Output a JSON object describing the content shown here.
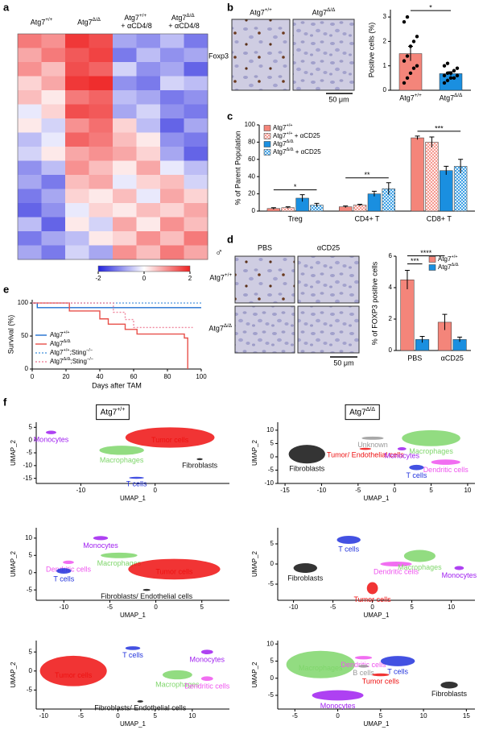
{
  "panel_labels": [
    "a",
    "b",
    "c",
    "d",
    "e",
    "f"
  ],
  "micrographs": {
    "b": {
      "col_labels": [
        "Atg7+/+",
        "Atg7Δ/Δ"
      ],
      "row_label": "Foxp3",
      "scale_bar": "50 μm"
    },
    "d": {
      "sex": "♂",
      "col_labels": [
        "PBS",
        "αCD25"
      ],
      "row_labels": [
        "Atg7+/+",
        "Atg7Δ/Δ"
      ],
      "scale_bar": "50 μm"
    }
  },
  "umap_titles": [
    "Atg7+/+",
    "Atg7Δ/Δ"
  ],
  "chart_data": [
    {
      "type": "heatmap",
      "column_groups": [
        "Atg7+/+",
        "Atg7Δ/Δ",
        "Atg7+/+ + αCD4/8",
        "Atg7Δ/Δ + αCD4/8"
      ],
      "values": [
        [
          1.2,
          1.0,
          1.8,
          1.6,
          -0.8,
          -1.0,
          -0.6,
          -1.2
        ],
        [
          0.8,
          1.2,
          1.5,
          1.7,
          -1.2,
          -0.6,
          -1.0,
          -0.8
        ],
        [
          1.0,
          0.6,
          1.6,
          1.4,
          -0.4,
          -1.0,
          -0.8,
          -1.4
        ],
        [
          0.4,
          0.8,
          1.8,
          1.9,
          -1.0,
          -1.2,
          -0.4,
          -0.6
        ],
        [
          0.6,
          0.2,
          1.2,
          1.4,
          -0.6,
          -0.8,
          -1.2,
          -1.0
        ],
        [
          -0.2,
          0.4,
          1.6,
          1.5,
          -0.8,
          -0.4,
          -1.0,
          -1.2
        ],
        [
          0.2,
          -0.4,
          1.0,
          1.3,
          0.4,
          -0.6,
          -1.4,
          -0.8
        ],
        [
          -0.6,
          -0.2,
          1.4,
          1.2,
          0.6,
          0.2,
          -1.0,
          -1.2
        ],
        [
          -0.4,
          0.2,
          0.8,
          1.0,
          0.8,
          0.4,
          -0.8,
          -1.4
        ],
        [
          -1.0,
          -0.6,
          1.0,
          0.6,
          0.2,
          0.8,
          -0.2,
          -0.6
        ],
        [
          -0.8,
          -1.2,
          0.6,
          0.8,
          -0.2,
          0.4,
          0.6,
          -0.4
        ],
        [
          -1.2,
          -0.8,
          0.4,
          0.2,
          0.6,
          -0.2,
          0.8,
          0.4
        ],
        [
          -1.4,
          -1.0,
          -0.2,
          0.4,
          0.2,
          0.6,
          0.4,
          0.8
        ],
        [
          -0.6,
          -1.4,
          0.2,
          -0.4,
          0.8,
          0.2,
          1.0,
          0.6
        ],
        [
          -1.2,
          -0.8,
          -0.6,
          0.2,
          0.4,
          1.0,
          0.6,
          1.2
        ],
        [
          -0.8,
          -1.2,
          -0.4,
          -0.8,
          1.0,
          0.6,
          1.2,
          0.8
        ]
      ],
      "clim": [
        -2,
        2
      ],
      "colorbar_ticks": [
        -2,
        0,
        2
      ],
      "colors": [
        "#2222dd",
        "#ffffff",
        "#ee2222"
      ]
    },
    {
      "type": "bar",
      "ylabel": "Positive cells (%)",
      "categories": [
        "Atg7+/+",
        "Atg7Δ/Δ"
      ],
      "values": [
        1.5,
        0.68
      ],
      "errors": [
        0.3,
        0.08
      ],
      "colors": [
        "#f4857a",
        "#1a8fe0"
      ],
      "points": [
        [
          0.3,
          0.5,
          0.7,
          0.9,
          1.0,
          1.2,
          1.4,
          1.8,
          2.0,
          2.2,
          2.8,
          3.0
        ],
        [
          0.3,
          0.4,
          0.5,
          0.5,
          0.6,
          0.6,
          0.7,
          0.7,
          0.8,
          0.9,
          1.0,
          1.1
        ]
      ],
      "ylim": [
        0,
        3.3
      ],
      "yticks": [
        0,
        1,
        2,
        3
      ],
      "significance": [
        "*"
      ]
    },
    {
      "type": "bar",
      "ylabel": "% of Parent Population",
      "legend": "upper left",
      "categories": [
        "Treg",
        "CD4+ T",
        "CD8+ T"
      ],
      "series": [
        {
          "name": "Atg7+/+",
          "color": "#f4857a",
          "values": [
            3,
            5,
            85
          ],
          "errors": [
            1,
            1,
            2
          ]
        },
        {
          "name": "Atg7+/+ + αCD25",
          "color": "#f4857a",
          "hatch": true,
          "values": [
            4,
            7,
            80
          ],
          "errors": [
            1,
            1,
            6
          ]
        },
        {
          "name": "Atg7Δ/Δ",
          "color": "#1a8fe0",
          "values": [
            15,
            20,
            47
          ],
          "errors": [
            4,
            3,
            5
          ]
        },
        {
          "name": "Atg7Δ/Δ + αCD25",
          "color": "#1a8fe0",
          "hatch": true,
          "values": [
            7,
            26,
            52
          ],
          "errors": [
            2,
            7,
            8
          ]
        }
      ],
      "ylim": [
        0,
        100
      ],
      "yticks": [
        0,
        20,
        40,
        60,
        80,
        100
      ],
      "group_significance": [
        "*",
        "**",
        "***"
      ]
    },
    {
      "type": "bar",
      "ylabel": "% of FOXP3 positive cells",
      "legend": "upper right",
      "categories": [
        "PBS",
        "αCD25"
      ],
      "series": [
        {
          "name": "Atg7+/+",
          "color": "#f4857a",
          "values": [
            4.5,
            1.8
          ],
          "errors": [
            0.6,
            0.5
          ]
        },
        {
          "name": "Atg7Δ/Δ",
          "color": "#1a8fe0",
          "values": [
            0.7,
            0.7
          ],
          "errors": [
            0.2,
            0.15
          ]
        }
      ],
      "ylim": [
        0,
        6
      ],
      "yticks": [
        0,
        2,
        4,
        6
      ],
      "significance": [
        "***",
        "****"
      ]
    },
    {
      "type": "line",
      "step": true,
      "xlabel": "Days after TAM",
      "ylabel": "Survival (%)",
      "legend": "lower left",
      "xlim": [
        0,
        100
      ],
      "ylim": [
        0,
        105
      ],
      "xticks": [
        0,
        20,
        40,
        60,
        80,
        100
      ],
      "yticks": [
        0,
        50,
        100
      ],
      "series": [
        {
          "name": "Atg7+/+",
          "color": "#1f6fd0",
          "style": "solid",
          "x": [
            0,
            3,
            100
          ],
          "values": [
            100,
            93,
            93
          ]
        },
        {
          "name": "Atg7Δ/Δ",
          "color": "#e8504a",
          "style": "solid",
          "x": [
            0,
            22,
            40,
            45,
            55,
            62,
            90,
            92
          ],
          "values": [
            100,
            88,
            76,
            68,
            60,
            53,
            47,
            0
          ]
        },
        {
          "name": "Atg7+/+;Sting−/−",
          "color": "#5fa0e0",
          "style": "dotted",
          "x": [
            0,
            100
          ],
          "values": [
            100,
            100
          ]
        },
        {
          "name": "Atg7Δ/Δ;Sting−/−",
          "color": "#f08aa0",
          "style": "dotted",
          "x": [
            0,
            48,
            55,
            60,
            95
          ],
          "values": [
            100,
            86,
            75,
            63,
            63
          ]
        }
      ]
    },
    {
      "type": "scatter",
      "xlabel": "UMAP_1",
      "ylabel": "UMAP_2",
      "xlim": [
        -16,
        10
      ],
      "ylim": [
        -17,
        7
      ],
      "xticks": [
        -10,
        0
      ],
      "yticks": [
        5,
        0,
        -5,
        -10,
        -15
      ],
      "clusters": [
        {
          "name": "Monocytes",
          "color": "#a020f0",
          "x": -14,
          "y": 3,
          "sx": 0.7,
          "sy": 0.7
        },
        {
          "name": "Macrophages",
          "color": "#7fd66b",
          "x": -4.5,
          "y": -4,
          "sx": 3,
          "sy": 1.8
        },
        {
          "name": "Tumor cells",
          "color": "#ee1111",
          "x": 2,
          "y": 1,
          "sx": 6,
          "sy": 4
        },
        {
          "name": "Fibroblasts",
          "color": "#111111",
          "x": 6,
          "y": -7.5,
          "sx": 0.4,
          "sy": 0.4
        },
        {
          "name": "T cells",
          "color": "#2233dd",
          "x": -2.5,
          "y": -14.8,
          "sx": 1,
          "sy": 0.4
        }
      ]
    },
    {
      "type": "scatter",
      "xlabel": "UMAP_1",
      "ylabel": "UMAP_2",
      "xlim": [
        -16,
        11
      ],
      "ylim": [
        -10,
        13
      ],
      "xticks": [
        -15,
        -10,
        -5,
        0,
        5,
        10
      ],
      "yticks": [
        10,
        5,
        0,
        -5,
        -10
      ],
      "clusters": [
        {
          "name": "Fibroblasts",
          "color": "#111111",
          "x": -12,
          "y": 1,
          "sx": 2.5,
          "sy": 3.5
        },
        {
          "name": "Unknown",
          "color": "#999999",
          "x": -3,
          "y": 7,
          "sx": 1.5,
          "sy": 0.6
        },
        {
          "name": "Tumor/ Endothelial cells",
          "color": "#ee1111",
          "x": -4,
          "y": 3,
          "sx": 0.8,
          "sy": 0.4
        },
        {
          "name": "Macrophages",
          "color": "#7fd66b",
          "x": 5,
          "y": 7,
          "sx": 4,
          "sy": 3
        },
        {
          "name": "Monocytes",
          "color": "#a020f0",
          "x": 1,
          "y": 3,
          "sx": 0.6,
          "sy": 0.6
        },
        {
          "name": "Dendritic cells",
          "color": "#ee55ee",
          "x": 7,
          "y": -2,
          "sx": 2,
          "sy": 1
        },
        {
          "name": "T cells",
          "color": "#2233dd",
          "x": 3,
          "y": -4,
          "sx": 1,
          "sy": 1
        }
      ]
    },
    {
      "type": "scatter",
      "xlabel": "UMAP_1",
      "ylabel": "UMAP_2",
      "xlim": [
        -13,
        8
      ],
      "ylim": [
        -8,
        13
      ],
      "xticks": [
        -10,
        -5,
        0,
        5
      ],
      "yticks": [
        10,
        5,
        0,
        -5
      ],
      "clusters": [
        {
          "name": "Monocytes",
          "color": "#a020f0",
          "x": -6,
          "y": 10,
          "sx": 0.8,
          "sy": 0.6
        },
        {
          "name": "Macrophages",
          "color": "#7fd66b",
          "x": -4,
          "y": 5,
          "sx": 2,
          "sy": 0.8
        },
        {
          "name": "Dendritic cells",
          "color": "#ee55ee",
          "x": -9.5,
          "y": 3,
          "sx": 0.6,
          "sy": 0.5
        },
        {
          "name": "T cells",
          "color": "#2233dd",
          "x": -10,
          "y": 0.5,
          "sx": 0.8,
          "sy": 0.8
        },
        {
          "name": "Tumor cells",
          "color": "#ee1111",
          "x": 2,
          "y": 1,
          "sx": 5,
          "sy": 3
        },
        {
          "name": "Fibroblasts/ Endothelial cells",
          "color": "#111111",
          "x": -1,
          "y": -5,
          "sx": 0.4,
          "sy": 0.3
        }
      ]
    },
    {
      "type": "scatter",
      "xlabel": "UMAP_1",
      "ylabel": "UMAP_2",
      "xlim": [
        -12,
        13
      ],
      "ylim": [
        -9,
        9
      ],
      "xticks": [
        -10,
        -5,
        0,
        5,
        10
      ],
      "yticks": [
        5,
        0,
        -5
      ],
      "clusters": [
        {
          "name": "T cells",
          "color": "#2233dd",
          "x": -3,
          "y": 6,
          "sx": 1.5,
          "sy": 1
        },
        {
          "name": "Fibroblasts",
          "color": "#111111",
          "x": -8.5,
          "y": -1,
          "sx": 1.5,
          "sy": 1.2
        },
        {
          "name": "Dendritic cells",
          "color": "#ee55ee",
          "x": 3,
          "y": 0,
          "sx": 2,
          "sy": 0.6
        },
        {
          "name": "Macrophages",
          "color": "#7fd66b",
          "x": 6,
          "y": 2,
          "sx": 2,
          "sy": 1.5
        },
        {
          "name": "Monocytes",
          "color": "#a020f0",
          "x": 11,
          "y": -1,
          "sx": 0.6,
          "sy": 0.5
        },
        {
          "name": "Tumor cells",
          "color": "#ee1111",
          "x": 0,
          "y": -6,
          "sx": 0.7,
          "sy": 1.5
        }
      ]
    },
    {
      "type": "scatter",
      "xlabel": "UMAP_1",
      "ylabel": "UMAP_2",
      "xlim": [
        -11,
        15
      ],
      "ylim": [
        -10,
        8
      ],
      "xticks": [
        -10,
        -5,
        0,
        5,
        10
      ],
      "yticks": [
        5,
        0,
        -5
      ],
      "clusters": [
        {
          "name": "Tumor cells",
          "color": "#ee1111",
          "x": -6,
          "y": 0,
          "sx": 4.5,
          "sy": 4
        },
        {
          "name": "T cells",
          "color": "#2233dd",
          "x": 2,
          "y": 6,
          "sx": 1,
          "sy": 0.5
        },
        {
          "name": "Monocytes",
          "color": "#a020f0",
          "x": 12,
          "y": 5,
          "sx": 0.8,
          "sy": 0.6
        },
        {
          "name": "Macrophages",
          "color": "#7fd66b",
          "x": 8,
          "y": -1,
          "sx": 2,
          "sy": 1.2
        },
        {
          "name": "Dendritic cells",
          "color": "#ee55ee",
          "x": 12,
          "y": -2,
          "sx": 0.8,
          "sy": 0.6
        },
        {
          "name": "Fibroblasts/ Endothelial cells",
          "color": "#111111",
          "x": 3,
          "y": -8,
          "sx": 0.4,
          "sy": 0.3
        }
      ]
    },
    {
      "type": "scatter",
      "xlabel": "UMAP_1",
      "ylabel": "UMAP_2",
      "xlim": [
        -7,
        16
      ],
      "ylim": [
        -9,
        11
      ],
      "xticks": [
        -5,
        0,
        5,
        10,
        15
      ],
      "yticks": [
        10,
        5,
        0,
        -5
      ],
      "clusters": [
        {
          "name": "Macrophages",
          "color": "#7fd66b",
          "x": -2,
          "y": 4,
          "sx": 4,
          "sy": 4
        },
        {
          "name": "Dendritic cells",
          "color": "#ee55ee",
          "x": 3,
          "y": 6,
          "sx": 1,
          "sy": 0.5
        },
        {
          "name": "B cells",
          "color": "#999999",
          "x": 3,
          "y": 3.5,
          "sx": 0.6,
          "sy": 0.4
        },
        {
          "name": "T cells",
          "color": "#2233dd",
          "x": 7,
          "y": 5,
          "sx": 2,
          "sy": 1.5
        },
        {
          "name": "Tumor cells",
          "color": "#ee1111",
          "x": 5,
          "y": 1,
          "sx": 1,
          "sy": 0.4
        },
        {
          "name": "Monocytes",
          "color": "#a020f0",
          "x": 0,
          "y": -5,
          "sx": 3,
          "sy": 1.5
        },
        {
          "name": "Fibroblasts",
          "color": "#111111",
          "x": 13,
          "y": -2,
          "sx": 1,
          "sy": 1
        }
      ]
    }
  ]
}
